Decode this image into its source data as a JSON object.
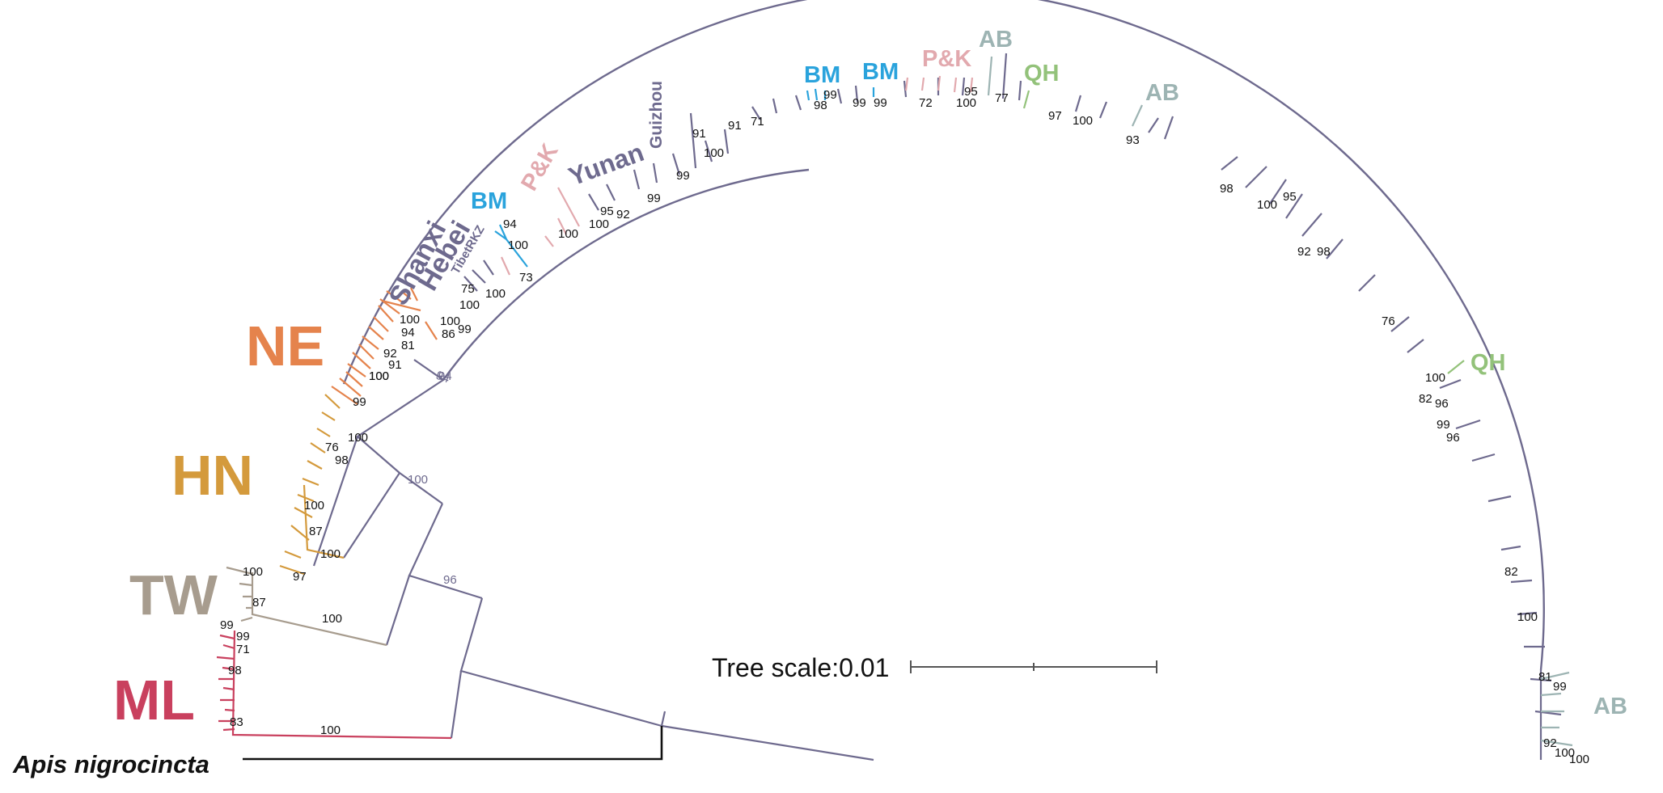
{
  "colors": {
    "backbone": "#6e6a8e",
    "outgroup": "#111111",
    "ML": "#c9405e",
    "TW": "#a79c8e",
    "HN": "#d49a3c",
    "NE": "#e5834c",
    "BM": "#2aa3dc",
    "PK": "#e2a9ae",
    "AB": "#9db4b3",
    "QH": "#93c27a",
    "region": "#6e6a8e"
  },
  "outgroup_label": "Apis nigrocincta",
  "tree_scale": {
    "label": "Tree  scale:0.01"
  },
  "lineage_labels": [
    {
      "key": "ML",
      "text": "ML",
      "size": "large"
    },
    {
      "key": "TW",
      "text": "TW",
      "size": "large"
    },
    {
      "key": "HN",
      "text": "HN",
      "size": "large"
    },
    {
      "key": "NE",
      "text": "NE",
      "size": "large"
    },
    {
      "key": "BM",
      "text": "BM",
      "size": "medium"
    },
    {
      "key": "BM",
      "text": "BM",
      "size": "medium"
    },
    {
      "key": "BM",
      "text": "BM",
      "size": "medium"
    },
    {
      "key": "PK",
      "text": "P&K",
      "size": "medium"
    },
    {
      "key": "PK",
      "text": "P&K",
      "size": "medium"
    },
    {
      "key": "AB",
      "text": "AB",
      "size": "medium"
    },
    {
      "key": "AB",
      "text": "AB",
      "size": "medium"
    },
    {
      "key": "AB",
      "text": "AB",
      "size": "medium"
    },
    {
      "key": "QH",
      "text": "QH",
      "size": "medium"
    },
    {
      "key": "QH",
      "text": "QH",
      "size": "medium"
    }
  ],
  "region_labels": [
    "Shanxi",
    "Hebei",
    "TibetRKZ",
    "Yunan",
    "Guizhou"
  ],
  "bootstrap_values": [
    "100",
    "100",
    "96",
    "100",
    "100",
    "87",
    "100",
    "99",
    "99",
    "71",
    "98",
    "83",
    "97",
    "87",
    "100",
    "100",
    "76",
    "98",
    "100",
    "99",
    "100",
    "91",
    "92",
    "81",
    "94",
    "100",
    "86",
    "99",
    "100",
    "94",
    "75",
    "100",
    "100",
    "73",
    "94",
    "100",
    "100",
    "100",
    "95",
    "92",
    "99",
    "99",
    "91",
    "91",
    "71",
    "100",
    "98",
    "99",
    "99",
    "99",
    "72",
    "100",
    "95",
    "77",
    "97",
    "100",
    "93",
    "98",
    "100",
    "95",
    "92",
    "98",
    "76",
    "100",
    "82",
    "96",
    "99",
    "96",
    "82",
    "100",
    "81",
    "99",
    "92",
    "100",
    "100",
    "94"
  ]
}
